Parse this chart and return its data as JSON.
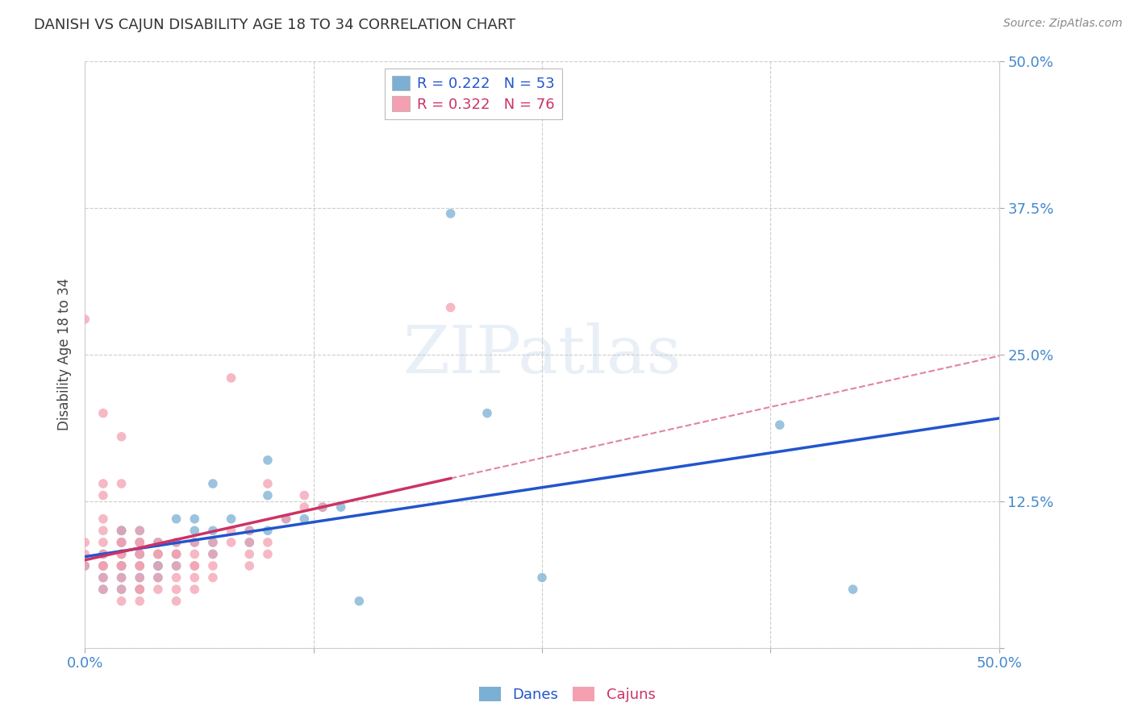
{
  "title": "DANISH VS CAJUN DISABILITY AGE 18 TO 34 CORRELATION CHART",
  "source": "Source: ZipAtlas.com",
  "ylabel": "Disability Age 18 to 34",
  "xlim": [
    0.0,
    0.5
  ],
  "ylim": [
    0.0,
    0.5
  ],
  "xtick_vals": [
    0.0,
    0.125,
    0.25,
    0.375,
    0.5
  ],
  "ytick_vals": [
    0.0,
    0.125,
    0.25,
    0.375,
    0.5
  ],
  "xticklabels": [
    "0.0%",
    "",
    "",
    "",
    "50.0%"
  ],
  "yticklabels_right": [
    "",
    "12.5%",
    "25.0%",
    "37.5%",
    "50.0%"
  ],
  "legend_r_danes": "0.222",
  "legend_n_danes": "53",
  "legend_r_cajuns": "0.322",
  "legend_n_cajuns": "76",
  "danes_color": "#7BAFD4",
  "cajuns_color": "#F4A0B0",
  "danes_line_color": "#2255cc",
  "cajuns_line_color": "#cc3366",
  "background_color": "#ffffff",
  "grid_color": "#cccccc",
  "title_color": "#333333",
  "tick_label_color": "#4488cc",
  "watermark_text": "ZIPatlas",
  "danes_x": [
    0.0,
    0.01,
    0.01,
    0.01,
    0.01,
    0.02,
    0.02,
    0.02,
    0.02,
    0.02,
    0.02,
    0.02,
    0.02,
    0.02,
    0.03,
    0.03,
    0.03,
    0.03,
    0.03,
    0.03,
    0.03,
    0.04,
    0.04,
    0.04,
    0.04,
    0.04,
    0.05,
    0.05,
    0.05,
    0.05,
    0.06,
    0.06,
    0.06,
    0.07,
    0.07,
    0.07,
    0.07,
    0.08,
    0.09,
    0.09,
    0.1,
    0.1,
    0.1,
    0.11,
    0.12,
    0.13,
    0.14,
    0.15,
    0.2,
    0.22,
    0.25,
    0.38,
    0.42
  ],
  "danes_y": [
    0.07,
    0.05,
    0.06,
    0.07,
    0.08,
    0.05,
    0.06,
    0.07,
    0.07,
    0.08,
    0.09,
    0.09,
    0.1,
    0.1,
    0.05,
    0.06,
    0.07,
    0.08,
    0.08,
    0.09,
    0.1,
    0.06,
    0.07,
    0.07,
    0.08,
    0.09,
    0.07,
    0.08,
    0.09,
    0.11,
    0.09,
    0.1,
    0.11,
    0.08,
    0.09,
    0.1,
    0.14,
    0.11,
    0.09,
    0.1,
    0.1,
    0.13,
    0.16,
    0.11,
    0.11,
    0.12,
    0.12,
    0.04,
    0.37,
    0.2,
    0.06,
    0.19,
    0.05
  ],
  "cajuns_x": [
    0.0,
    0.0,
    0.0,
    0.0,
    0.01,
    0.01,
    0.01,
    0.01,
    0.01,
    0.01,
    0.01,
    0.01,
    0.01,
    0.01,
    0.01,
    0.02,
    0.02,
    0.02,
    0.02,
    0.02,
    0.02,
    0.02,
    0.02,
    0.02,
    0.02,
    0.02,
    0.02,
    0.03,
    0.03,
    0.03,
    0.03,
    0.03,
    0.03,
    0.03,
    0.03,
    0.03,
    0.03,
    0.03,
    0.04,
    0.04,
    0.04,
    0.04,
    0.04,
    0.04,
    0.05,
    0.05,
    0.05,
    0.05,
    0.05,
    0.05,
    0.05,
    0.06,
    0.06,
    0.06,
    0.06,
    0.06,
    0.06,
    0.07,
    0.07,
    0.07,
    0.07,
    0.08,
    0.08,
    0.08,
    0.09,
    0.09,
    0.09,
    0.09,
    0.1,
    0.1,
    0.1,
    0.11,
    0.12,
    0.12,
    0.13,
    0.2
  ],
  "cajuns_y": [
    0.07,
    0.08,
    0.09,
    0.28,
    0.05,
    0.06,
    0.07,
    0.07,
    0.08,
    0.09,
    0.1,
    0.11,
    0.13,
    0.14,
    0.2,
    0.04,
    0.05,
    0.06,
    0.07,
    0.07,
    0.08,
    0.08,
    0.09,
    0.09,
    0.1,
    0.14,
    0.18,
    0.04,
    0.05,
    0.05,
    0.06,
    0.07,
    0.07,
    0.08,
    0.08,
    0.09,
    0.09,
    0.1,
    0.05,
    0.06,
    0.07,
    0.08,
    0.08,
    0.09,
    0.04,
    0.05,
    0.06,
    0.07,
    0.08,
    0.08,
    0.09,
    0.05,
    0.06,
    0.07,
    0.07,
    0.08,
    0.09,
    0.06,
    0.07,
    0.08,
    0.09,
    0.09,
    0.1,
    0.23,
    0.07,
    0.08,
    0.09,
    0.1,
    0.08,
    0.09,
    0.14,
    0.11,
    0.12,
    0.13,
    0.12,
    0.29
  ]
}
